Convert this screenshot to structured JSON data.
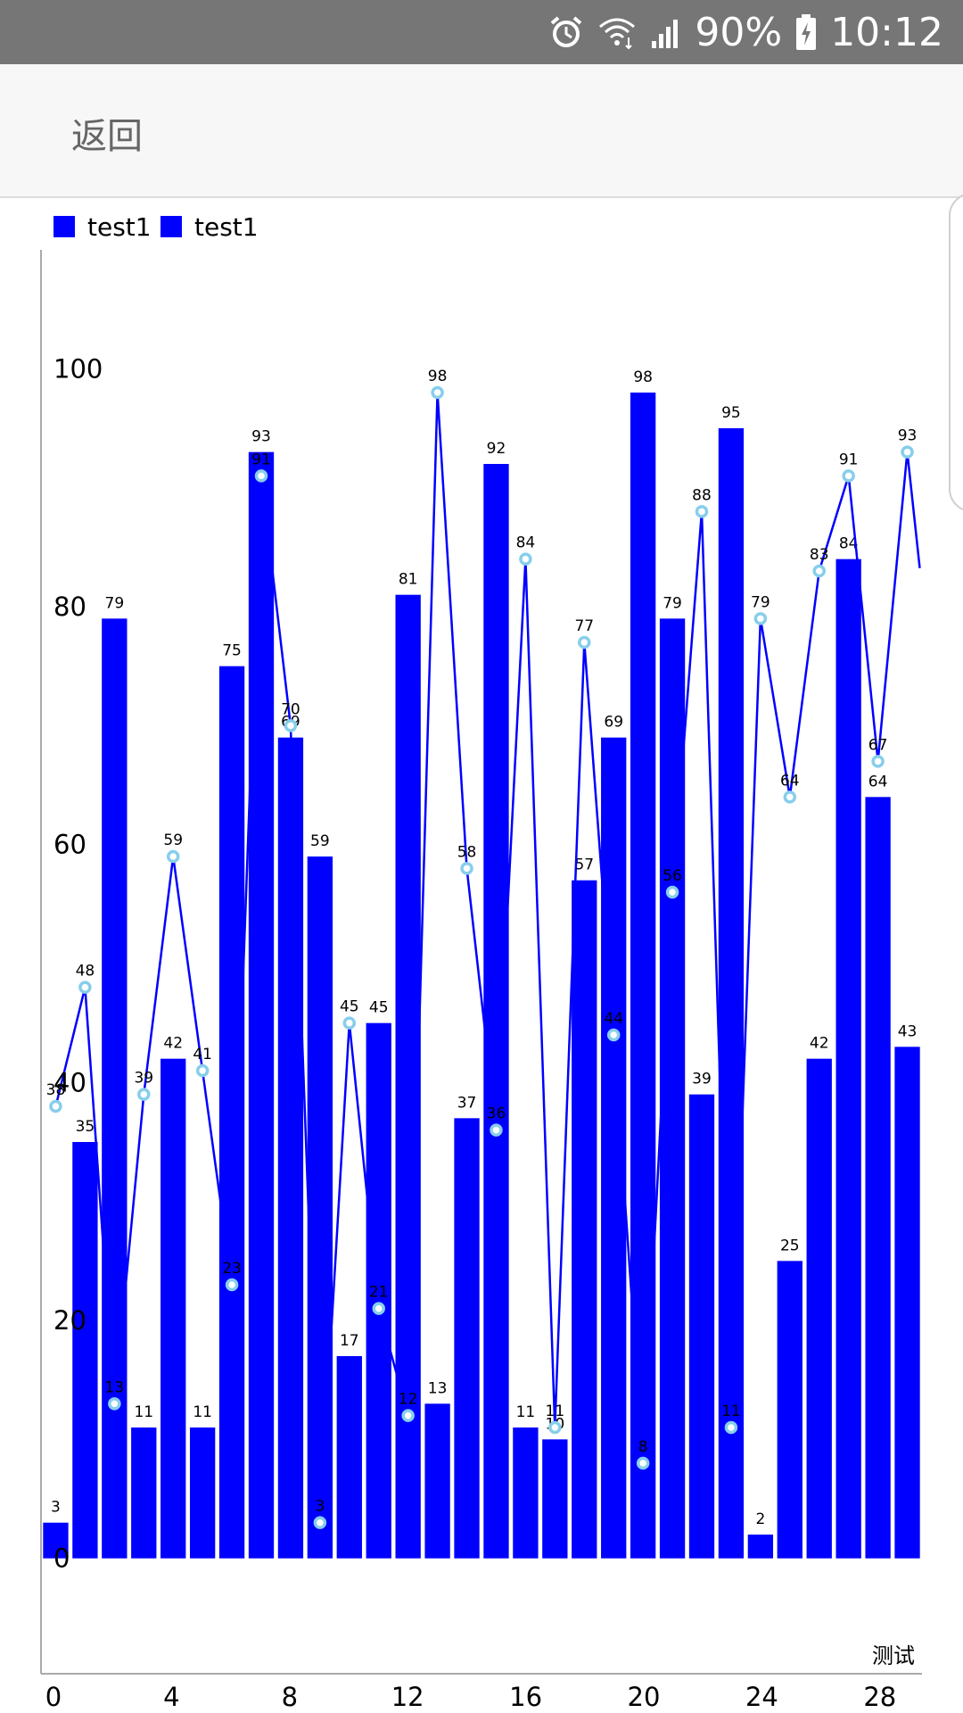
{
  "status_bar": {
    "battery": "90%",
    "time": "10:12",
    "icons": [
      "alarm-icon",
      "wifi-icon",
      "signal-icon",
      "battery-charging-icon"
    ]
  },
  "app_bar": {
    "back_label": "返回"
  },
  "colors": {
    "bar": "#0000ff",
    "line": "#0000ff",
    "point": "#87ceeb",
    "axis": "#aaaaaa"
  },
  "chart_data": {
    "type": "bar+line",
    "legend": [
      {
        "label": "test1",
        "color": "#0000ff"
      },
      {
        "label": "test1",
        "color": "#0000ff"
      }
    ],
    "legend_position": "top-left",
    "description": "测试",
    "x": [
      0,
      1,
      2,
      3,
      4,
      5,
      6,
      7,
      8,
      9,
      10,
      11,
      12,
      13,
      14,
      15,
      16,
      17,
      18,
      19,
      20,
      21,
      22,
      23,
      24,
      25,
      26,
      27,
      28,
      29
    ],
    "x_ticks": [
      0,
      4,
      8,
      12,
      16,
      20,
      24,
      28
    ],
    "y_ticks": [
      0,
      20,
      40,
      60,
      80,
      100
    ],
    "ylim": [
      -10,
      110
    ],
    "grid": false,
    "series": [
      {
        "type": "bar",
        "values": [
          3,
          35,
          79,
          11,
          42,
          11,
          75,
          93,
          69,
          59,
          17,
          45,
          81,
          13,
          37,
          92,
          11,
          10,
          57,
          69,
          98,
          79,
          39,
          95,
          2,
          25,
          42,
          84,
          64,
          43
        ]
      },
      {
        "type": "line",
        "values": [
          38,
          48,
          13,
          39,
          59,
          41,
          23,
          91,
          70,
          3,
          45,
          21,
          12,
          98,
          58,
          36,
          84,
          11,
          77,
          44,
          8,
          56,
          88,
          11,
          79,
          64,
          83,
          91,
          67,
          93
        ]
      }
    ]
  }
}
